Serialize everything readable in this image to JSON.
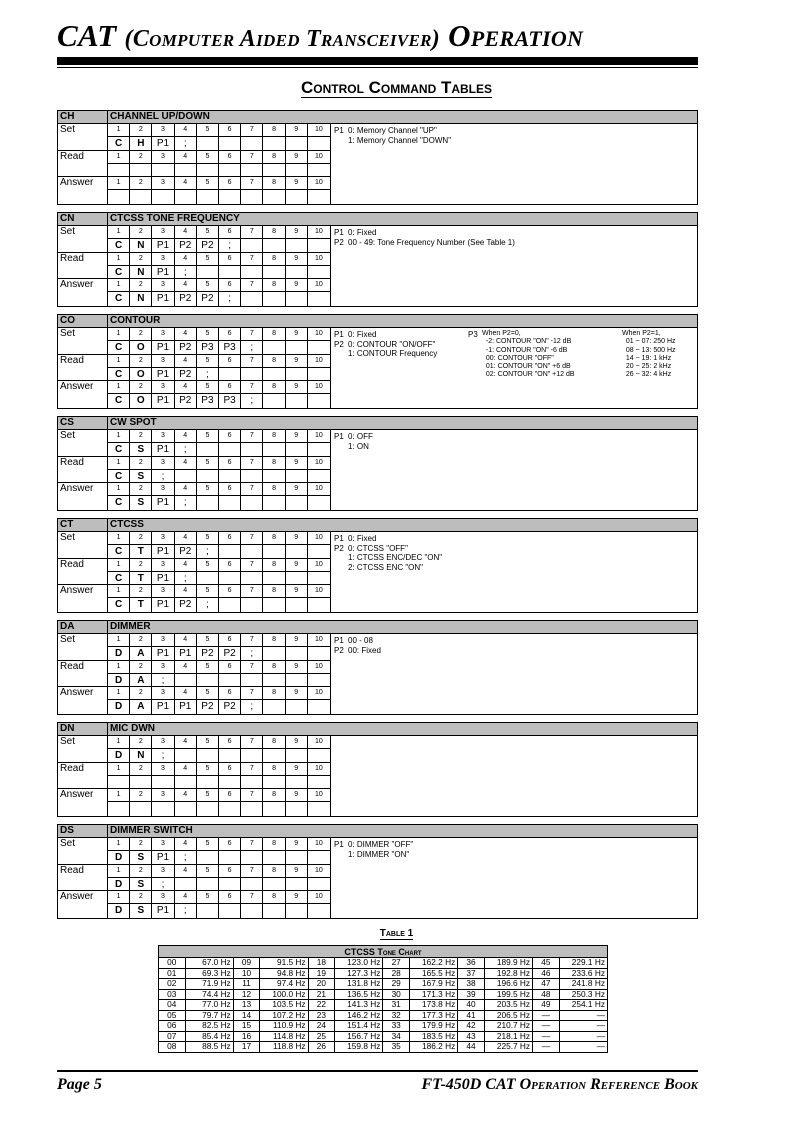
{
  "header": {
    "title_main": "CAT",
    "title_sub": "(Computer Aided Transceiver)",
    "title_end": "Operation",
    "section_title": "Control Command Tables"
  },
  "column_numbers": [
    "1",
    "2",
    "3",
    "4",
    "5",
    "6",
    "7",
    "8",
    "9",
    "10"
  ],
  "row_labels": {
    "set": "Set",
    "read": "Read",
    "answer": "Answer"
  },
  "commands": [
    {
      "code": "CH",
      "title": "CHANNEL UP/DOWN",
      "set": [
        "C",
        "H",
        "P1",
        ";"
      ],
      "read": [],
      "answer": [],
      "desc": [
        [
          "P1",
          "0: Memory Channel \"UP\"\n1: Memory Channel \"DOWN\""
        ]
      ]
    },
    {
      "code": "CN",
      "title": "CTCSS TONE FREQUENCY",
      "set": [
        "C",
        "N",
        "P1",
        "P2",
        "P2",
        ";"
      ],
      "read": [
        "C",
        "N",
        "P1",
        ";"
      ],
      "answer": [
        "C",
        "N",
        "P1",
        "P2",
        "P2",
        ";"
      ],
      "desc": [
        [
          "P1\nP2",
          "0: Fixed\n00 - 49: Tone Frequency Number (See Table 1)"
        ]
      ]
    },
    {
      "code": "CO",
      "title": "CONTOUR",
      "set": [
        "C",
        "O",
        "P1",
        "P2",
        "P3",
        "P3",
        ";"
      ],
      "read": [
        "C",
        "O",
        "P1",
        "P2",
        ";"
      ],
      "answer": [
        "C",
        "O",
        "P1",
        "P2",
        "P3",
        "P3",
        ";"
      ],
      "desc": [
        [
          "P1\nP2",
          "0: Fixed\n0: CONTOUR \"ON/OFF\"\n1: CONTOUR Frequency"
        ]
      ],
      "desc_extra": [
        [
          "P3",
          "When P2=0,\n  -2: CONTOUR \"ON\" -12 dB\n  -1: CONTOUR \"ON\" -6 dB\n  00: CONTOUR \"OFF\"\n  01: CONTOUR \"ON\" +6 dB\n  02: CONTOUR \"ON\" +12 dB"
        ],
        [
          "",
          "When P2=1,\n  01 ~ 07: 250 Hz\n  08 ~ 13: 500 Hz\n  14 ~ 19: 1 kHz\n  20 ~ 25: 2 kHz\n  26 ~ 32: 4 kHz"
        ]
      ]
    },
    {
      "code": "CS",
      "title": "CW SPOT",
      "set": [
        "C",
        "S",
        "P1",
        ";"
      ],
      "read": [
        "C",
        "S",
        ";"
      ],
      "answer": [
        "C",
        "S",
        "P1",
        ";"
      ],
      "desc": [
        [
          "P1",
          "0: OFF\n1: ON"
        ]
      ]
    },
    {
      "code": "CT",
      "title": "CTCSS",
      "set": [
        "C",
        "T",
        "P1",
        "P2",
        ";"
      ],
      "read": [
        "C",
        "T",
        "P1",
        ";"
      ],
      "answer": [
        "C",
        "T",
        "P1",
        "P2",
        ";"
      ],
      "desc": [
        [
          "P1\nP2",
          "0: Fixed\n0: CTCSS \"OFF\"\n1: CTCSS ENC/DEC \"ON\"\n2: CTCSS ENC \"ON\""
        ]
      ]
    },
    {
      "code": "DA",
      "title": "DIMMER",
      "set": [
        "D",
        "A",
        "P1",
        "P1",
        "P2",
        "P2",
        ";"
      ],
      "read": [
        "D",
        "A",
        ";"
      ],
      "answer": [
        "D",
        "A",
        "P1",
        "P1",
        "P2",
        "P2",
        ";"
      ],
      "desc": [
        [
          "P1\nP2",
          "00 - 08\n00: Fixed"
        ]
      ]
    },
    {
      "code": "DN",
      "title": "MIC DWN",
      "set": [
        "D",
        "N",
        ";"
      ],
      "read": [],
      "answer": [],
      "desc": []
    },
    {
      "code": "DS",
      "title": "DIMMER SWITCH",
      "set": [
        "D",
        "S",
        "P1",
        ";"
      ],
      "read": [
        "D",
        "S",
        ";"
      ],
      "answer": [
        "D",
        "S",
        "P1",
        ";"
      ],
      "desc": [
        [
          "P1",
          "0: DIMMER \"OFF\"\n1: DIMMER \"ON\""
        ]
      ]
    }
  ],
  "table1": {
    "label": "Table 1",
    "title": "CTCSS Tone Chart",
    "rows": [
      [
        "00",
        "67.0 Hz",
        "09",
        "91.5 Hz",
        "18",
        "123.0 Hz",
        "27",
        "162.2 Hz",
        "36",
        "189.9 Hz",
        "45",
        "229.1 Hz"
      ],
      [
        "01",
        "69.3 Hz",
        "10",
        "94.8 Hz",
        "19",
        "127.3 Hz",
        "28",
        "165.5 Hz",
        "37",
        "192.8 Hz",
        "46",
        "233.6 Hz"
      ],
      [
        "02",
        "71.9 Hz",
        "11",
        "97.4 Hz",
        "20",
        "131.8 Hz",
        "29",
        "167.9 Hz",
        "38",
        "196.6 Hz",
        "47",
        "241.8 Hz"
      ],
      [
        "03",
        "74.4 Hz",
        "12",
        "100.0 Hz",
        "21",
        "136.5 Hz",
        "30",
        "171.3 Hz",
        "39",
        "199.5 Hz",
        "48",
        "250.3 Hz"
      ],
      [
        "04",
        "77.0 Hz",
        "13",
        "103.5 Hz",
        "22",
        "141.3 Hz",
        "31",
        "173.8 Hz",
        "40",
        "203.5 Hz",
        "49",
        "254.1 Hz"
      ],
      [
        "05",
        "79.7 Hz",
        "14",
        "107.2 Hz",
        "23",
        "146.2 Hz",
        "32",
        "177.3 Hz",
        "41",
        "206.5 Hz",
        "—",
        "—"
      ],
      [
        "06",
        "82.5 Hz",
        "15",
        "110.9 Hz",
        "24",
        "151.4 Hz",
        "33",
        "179.9 Hz",
        "42",
        "210.7 Hz",
        "—",
        "—"
      ],
      [
        "07",
        "85.4 Hz",
        "16",
        "114.8 Hz",
        "25",
        "156.7 Hz",
        "34",
        "183.5 Hz",
        "43",
        "218.1 Hz",
        "—",
        "—"
      ],
      [
        "08",
        "88.5 Hz",
        "17",
        "118.8 Hz",
        "26",
        "159.8 Hz",
        "35",
        "186.2 Hz",
        "44",
        "225.7 Hz",
        "—",
        "—"
      ]
    ]
  },
  "footer": {
    "page": "Page 5",
    "book": "FT-450D CAT Operation Reference Book"
  }
}
